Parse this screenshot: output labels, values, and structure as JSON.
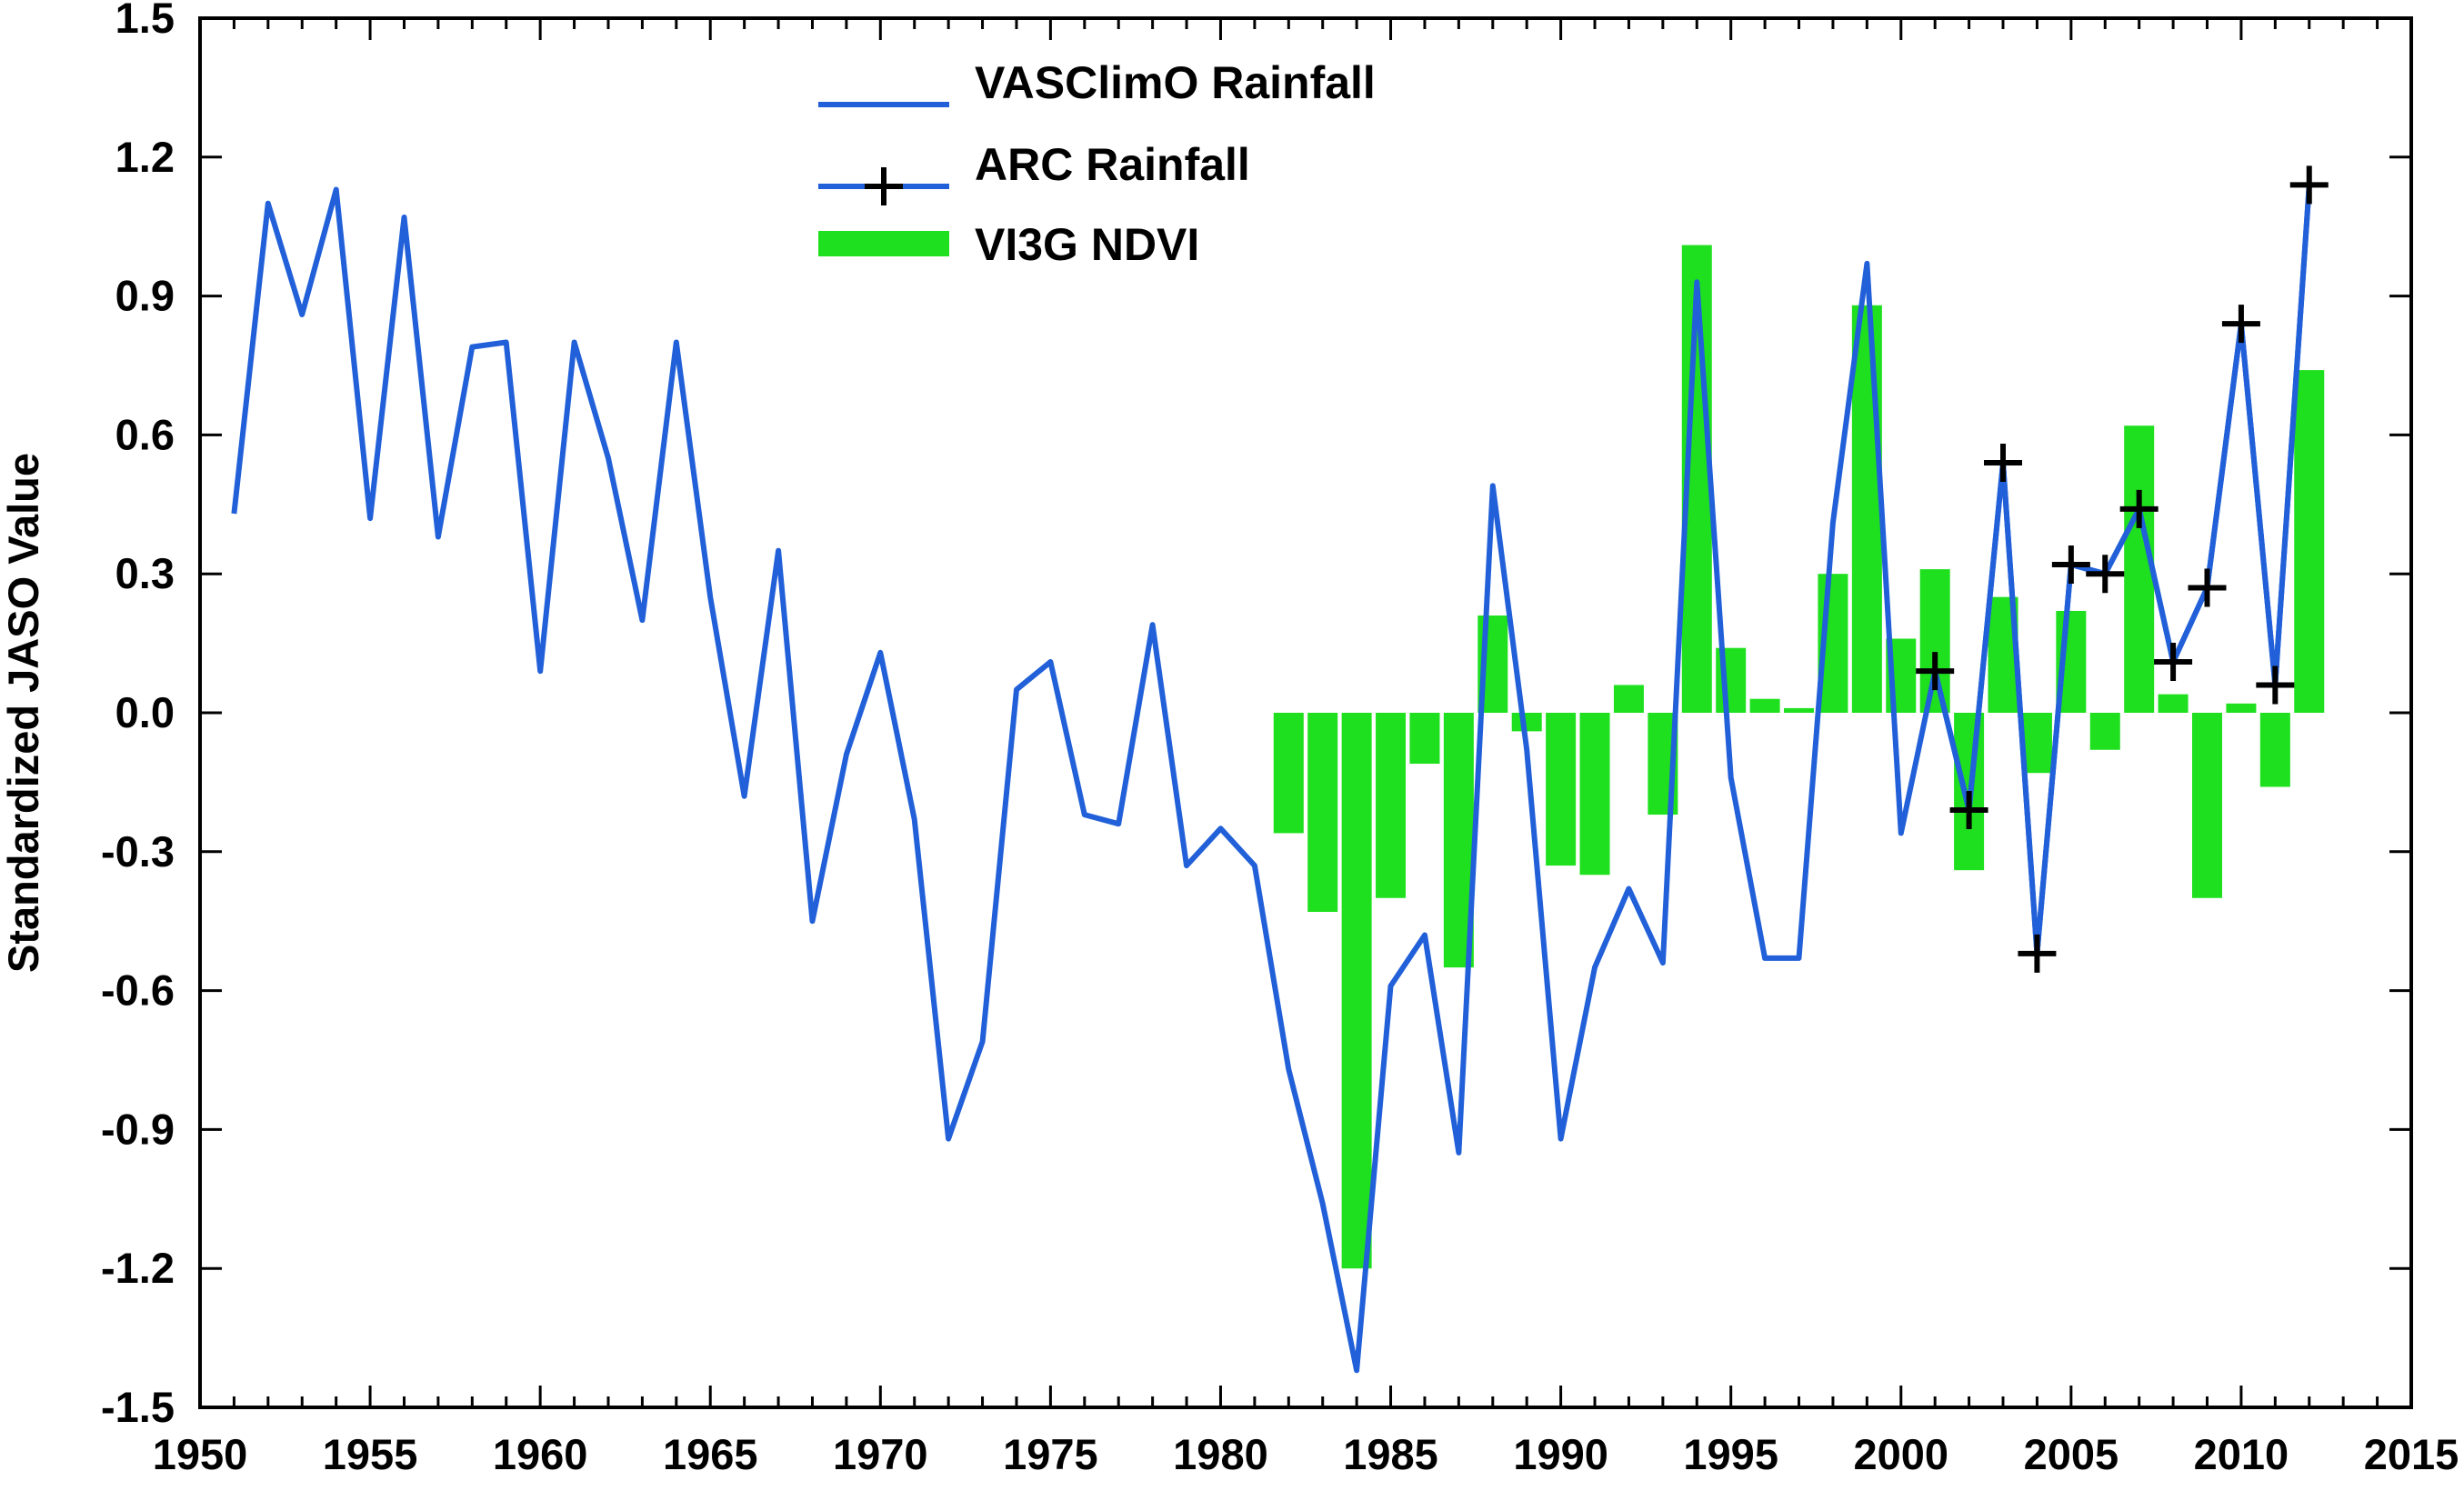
{
  "chart_data": {
    "type": "bar+line",
    "title": "",
    "xlabel": "",
    "ylabel": "Standardized JASO Value",
    "xlim": [
      1950,
      2015
    ],
    "ylim": [
      -1.5,
      1.5
    ],
    "x_ticks": [
      1950,
      1955,
      1960,
      1965,
      1970,
      1975,
      1980,
      1985,
      1990,
      1995,
      2000,
      2005,
      2010,
      2015
    ],
    "x_tick_labels": [
      "1950",
      "1955",
      "1960",
      "1965",
      "1970",
      "1975",
      "1980",
      "1985",
      "1990",
      "1995",
      "2000",
      "2005",
      "2010",
      "2015"
    ],
    "y_ticks": [
      -1.5,
      -1.2,
      -0.9,
      -0.6,
      -0.3,
      0.0,
      0.3,
      0.6,
      0.9,
      1.2,
      1.5
    ],
    "y_tick_labels": [
      "-1.5",
      "-1.2",
      "-0.9",
      "-0.6",
      "-0.3",
      "0.0",
      "0.3",
      "0.6",
      "0.9",
      "1.2",
      "1.5"
    ],
    "legend_position": "top-center",
    "series": [
      {
        "name": "VASClimO Rainfall",
        "kind": "line",
        "color": "#2160d8",
        "x": [
          1951,
          1952,
          1953,
          1954,
          1955,
          1956,
          1957,
          1958,
          1959,
          1960,
          1961,
          1962,
          1963,
          1964,
          1965,
          1966,
          1967,
          1968,
          1969,
          1970,
          1971,
          1972,
          1973,
          1974,
          1975,
          1976,
          1977,
          1978,
          1979,
          1980,
          1981,
          1982,
          1983,
          1984,
          1985,
          1986,
          1987,
          1988,
          1989,
          1990,
          1991,
          1992,
          1993,
          1994,
          1995,
          1996,
          1997,
          1998,
          1999,
          2000,
          2001,
          2002,
          2003,
          2004,
          2005,
          2006,
          2007,
          2008,
          2009,
          2010,
          2011,
          2012
        ],
        "values": [
          0.43,
          1.1,
          0.86,
          1.13,
          0.42,
          1.07,
          0.38,
          0.79,
          0.8,
          0.09,
          0.8,
          0.55,
          0.2,
          0.8,
          0.25,
          -0.18,
          0.35,
          -0.45,
          -0.09,
          0.13,
          -0.23,
          -0.92,
          -0.71,
          0.05,
          0.11,
          -0.22,
          -0.24,
          0.19,
          -0.33,
          -0.25,
          -0.33,
          -0.77,
          -1.06,
          -1.42,
          -0.59,
          -0.48,
          -0.95,
          0.49,
          -0.08,
          -0.92,
          -0.55,
          -0.38,
          -0.54,
          0.93,
          -0.14,
          -0.53,
          -0.53,
          0.41,
          0.97,
          -0.26,
          0.09,
          -0.21,
          0.54,
          -0.52,
          0.32,
          0.3,
          0.44,
          0.11,
          0.27,
          0.84,
          0.06,
          1.14
        ]
      },
      {
        "name": "ARC Rainfall",
        "kind": "line+marker",
        "marker": "plus",
        "color": "#2160d8",
        "marker_color": "#000000",
        "x": [
          2001,
          2002,
          2003,
          2004,
          2005,
          2006,
          2007,
          2008,
          2009,
          2010,
          2011,
          2012
        ],
        "values": [
          0.09,
          -0.21,
          0.54,
          -0.52,
          0.32,
          0.3,
          0.44,
          0.11,
          0.27,
          0.84,
          0.06,
          1.14
        ]
      },
      {
        "name": "VI3G NDVI",
        "kind": "bar",
        "color": "#1ee01e",
        "x": [
          1982,
          1983,
          1984,
          1985,
          1986,
          1987,
          1988,
          1989,
          1990,
          1991,
          1992,
          1993,
          1994,
          1995,
          1996,
          1997,
          1998,
          1999,
          2000,
          2001,
          2002,
          2003,
          2004,
          2005,
          2006,
          2007,
          2008,
          2009,
          2010,
          2011,
          2012
        ],
        "values": [
          -0.26,
          -0.43,
          -1.2,
          -0.4,
          -0.11,
          -0.55,
          0.21,
          -0.04,
          -0.33,
          -0.35,
          0.06,
          -0.22,
          1.01,
          0.14,
          0.03,
          0.01,
          0.3,
          0.88,
          0.16,
          0.31,
          -0.34,
          0.25,
          -0.13,
          0.22,
          -0.08,
          0.62,
          0.04,
          -0.4,
          0.02,
          -0.16,
          0.74
        ]
      }
    ]
  }
}
